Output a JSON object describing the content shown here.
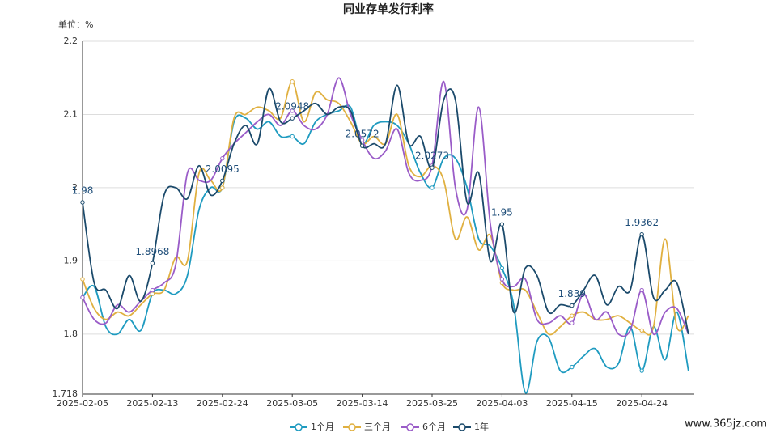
{
  "chart_data": {
    "type": "line",
    "title": "同业存单发行利率",
    "unit_label": "单位：%",
    "watermark": "www.365jz.com",
    "categories": [
      "2025-02-05",
      null,
      null,
      null,
      null,
      null,
      "2025-02-13",
      null,
      null,
      null,
      null,
      null,
      "2025-02-24",
      null,
      null,
      null,
      null,
      null,
      "2025-03-05",
      null,
      null,
      null,
      null,
      null,
      "2025-03-14",
      null,
      null,
      null,
      null,
      null,
      "2025-03-25",
      null,
      null,
      null,
      null,
      null,
      "2025-04-03",
      null,
      null,
      null,
      null,
      null,
      "2025-04-15",
      null,
      null,
      null,
      null,
      null,
      "2025-04-24",
      null,
      null,
      null,
      null
    ],
    "ylim": [
      1.718,
      2.2
    ],
    "yticks": [
      1.718,
      1.8,
      1.9,
      2,
      2.1,
      2.2
    ],
    "grid": true,
    "series": [
      {
        "name": "1个月",
        "color": "#1f9bc0",
        "values": [
          1.85,
          1.865,
          1.81,
          1.8,
          1.82,
          1.805,
          1.855,
          1.86,
          1.855,
          1.88,
          1.97,
          2.0,
          2.0,
          2.09,
          2.095,
          2.08,
          2.09,
          2.07,
          2.07,
          2.06,
          2.09,
          2.1,
          2.105,
          2.11,
          2.06,
          2.085,
          2.09,
          2.085,
          2.06,
          2.02,
          2.0,
          2.04,
          2.04,
          2.0,
          1.93,
          1.92,
          1.89,
          1.84,
          1.72,
          1.79,
          1.795,
          1.75,
          1.755,
          1.77,
          1.78,
          1.755,
          1.76,
          1.81,
          1.75,
          1.81,
          1.765,
          1.83,
          1.75
        ]
      },
      {
        "name": "三个月",
        "color": "#e0b040",
        "values": [
          1.875,
          1.835,
          1.82,
          1.83,
          1.825,
          1.84,
          1.855,
          1.86,
          1.905,
          1.9,
          2.02,
          2.01,
          2.0,
          2.095,
          2.1,
          2.11,
          2.105,
          2.095,
          2.145,
          2.09,
          2.13,
          2.12,
          2.115,
          2.09,
          2.06,
          2.07,
          2.06,
          2.1,
          2.03,
          2.015,
          2.03,
          2.01,
          1.93,
          1.96,
          1.915,
          1.935,
          1.87,
          1.86,
          1.86,
          1.83,
          1.8,
          1.81,
          1.825,
          1.83,
          1.82,
          1.82,
          1.825,
          1.815,
          1.805,
          1.81,
          1.93,
          1.81,
          1.825
        ]
      },
      {
        "name": "6个月",
        "color": "#9a5cc8",
        "values": [
          1.85,
          1.82,
          1.815,
          1.84,
          1.83,
          1.845,
          1.86,
          1.87,
          1.895,
          2.02,
          2.01,
          2.01,
          2.04,
          2.06,
          2.075,
          2.09,
          2.1,
          2.085,
          2.105,
          2.085,
          2.08,
          2.1,
          2.15,
          2.1,
          2.065,
          2.04,
          2.05,
          2.08,
          2.02,
          2.01,
          2.03,
          2.145,
          2.0,
          1.97,
          2.11,
          1.95,
          1.875,
          1.865,
          1.875,
          1.82,
          1.815,
          1.825,
          1.815,
          1.855,
          1.82,
          1.83,
          1.8,
          1.805,
          1.86,
          1.8,
          1.83,
          1.835,
          1.8
        ]
      },
      {
        "name": "1年",
        "color": "#1b4a6b",
        "values": [
          1.98,
          1.87,
          1.86,
          1.835,
          1.88,
          1.845,
          1.8968,
          1.99,
          2.0,
          1.985,
          2.03,
          1.99,
          2.0095,
          2.06,
          2.085,
          2.06,
          2.135,
          2.09,
          2.0948,
          2.105,
          2.115,
          2.1,
          2.11,
          2.105,
          2.0572,
          2.06,
          2.06,
          2.14,
          2.06,
          2.07,
          2.0273,
          2.12,
          2.12,
          1.98,
          2.02,
          1.9,
          1.95,
          1.83,
          1.89,
          1.88,
          1.83,
          1.84,
          1.839,
          1.86,
          1.88,
          1.84,
          1.865,
          1.86,
          1.9362,
          1.85,
          1.86,
          1.87,
          1.8
        ]
      }
    ]
  }
}
